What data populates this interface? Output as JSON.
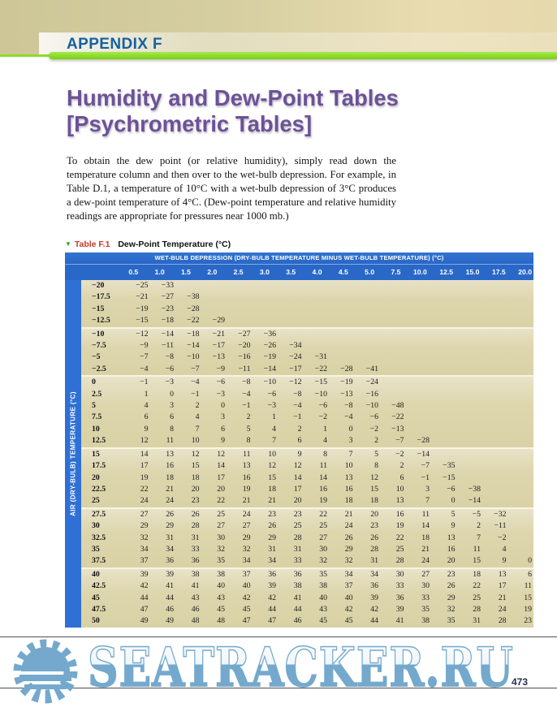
{
  "page": {
    "appendix_label": "APPENDIX F",
    "title_line1": "Humidity and Dew-Point Tables",
    "title_line2": "[Psychrometric Tables]",
    "intro_paragraph": "To obtain the dew point (or relative humidity), simply read down the temperature column and then over to the wet-bulb depression. For example, in Table D.1, a temperature of 10°C with a wet-bulb depression of 3°C produces a dew-point temperature of 4°C. (Dew-point temperature and relative humidity readings are appropriate for pressures near 1000 mb.)",
    "page_number": "473"
  },
  "table": {
    "caption_marker": "▼",
    "caption_label": "Table F.1",
    "caption_title": "Dew-Point Temperature (°C)",
    "header_banner": "WET-BULB DEPRESSION (DRY-BULB TEMPERATURE MINUS WET-BULB TEMPERATURE) (°C)",
    "row_axis_label": "AIR (DRY-BULB) TEMPERATURE (°C)",
    "column_headers": [
      "0.5",
      "1.0",
      "1.5",
      "2.0",
      "2.5",
      "3.0",
      "3.5",
      "4.0",
      "4.5",
      "5.0",
      "7.5",
      "10.0",
      "12.5",
      "15.0",
      "17.5",
      "20.0"
    ],
    "row_groups": [
      4,
      4,
      6,
      5,
      5,
      5
    ],
    "rows": [
      {
        "temp": "−20",
        "values": [
          "−25",
          "−33"
        ]
      },
      {
        "temp": "−17.5",
        "values": [
          "−21",
          "−27",
          "−38"
        ]
      },
      {
        "temp": "−15",
        "values": [
          "−19",
          "−23",
          "−28"
        ]
      },
      {
        "temp": "−12.5",
        "values": [
          "−15",
          "−18",
          "−22",
          "−29"
        ]
      },
      {
        "temp": "−10",
        "values": [
          "−12",
          "−14",
          "−18",
          "−21",
          "−27",
          "−36"
        ]
      },
      {
        "temp": "−7.5",
        "values": [
          "−9",
          "−11",
          "−14",
          "−17",
          "−20",
          "−26",
          "−34"
        ]
      },
      {
        "temp": "−5",
        "values": [
          "−7",
          "−8",
          "−10",
          "−13",
          "−16",
          "−19",
          "−24",
          "−31"
        ]
      },
      {
        "temp": "−2.5",
        "values": [
          "−4",
          "−6",
          "−7",
          "−9",
          "−11",
          "−14",
          "−17",
          "−22",
          "−28",
          "−41"
        ]
      },
      {
        "temp": "0",
        "values": [
          "−1",
          "−3",
          "−4",
          "−6",
          "−8",
          "−10",
          "−12",
          "−15",
          "−19",
          "−24"
        ]
      },
      {
        "temp": "2.5",
        "values": [
          "1",
          "0",
          "−1",
          "−3",
          "−4",
          "−6",
          "−8",
          "−10",
          "−13",
          "−16"
        ]
      },
      {
        "temp": "5",
        "values": [
          "4",
          "3",
          "2",
          "0",
          "−1",
          "−3",
          "−4",
          "−6",
          "−8",
          "−10",
          "−48"
        ]
      },
      {
        "temp": "7.5",
        "values": [
          "6",
          "6",
          "4",
          "3",
          "2",
          "1",
          "−1",
          "−2",
          "−4",
          "−6",
          "−22"
        ]
      },
      {
        "temp": "10",
        "values": [
          "9",
          "8",
          "7",
          "6",
          "5",
          "4",
          "2",
          "1",
          "0",
          "−2",
          "−13"
        ]
      },
      {
        "temp": "12.5",
        "values": [
          "12",
          "11",
          "10",
          "9",
          "8",
          "7",
          "6",
          "4",
          "3",
          "2",
          "−7",
          "−28"
        ]
      },
      {
        "temp": "15",
        "values": [
          "14",
          "13",
          "12",
          "12",
          "11",
          "10",
          "9",
          "8",
          "7",
          "5",
          "−2",
          "−14"
        ]
      },
      {
        "temp": "17.5",
        "values": [
          "17",
          "16",
          "15",
          "14",
          "13",
          "12",
          "12",
          "11",
          "10",
          "8",
          "2",
          "−7",
          "−35"
        ]
      },
      {
        "temp": "20",
        "values": [
          "19",
          "18",
          "18",
          "17",
          "16",
          "15",
          "14",
          "14",
          "13",
          "12",
          "6",
          "−1",
          "−15"
        ]
      },
      {
        "temp": "22.5",
        "values": [
          "22",
          "21",
          "20",
          "20",
          "19",
          "18",
          "17",
          "16",
          "16",
          "15",
          "10",
          "3",
          "−6",
          "−38"
        ]
      },
      {
        "temp": "25",
        "values": [
          "24",
          "24",
          "23",
          "22",
          "21",
          "21",
          "20",
          "19",
          "18",
          "18",
          "13",
          "7",
          "0",
          "−14"
        ]
      },
      {
        "temp": "27.5",
        "values": [
          "27",
          "26",
          "26",
          "25",
          "24",
          "23",
          "23",
          "22",
          "21",
          "20",
          "16",
          "11",
          "5",
          "−5",
          "−32"
        ]
      },
      {
        "temp": "30",
        "values": [
          "29",
          "29",
          "28",
          "27",
          "27",
          "26",
          "25",
          "25",
          "24",
          "23",
          "19",
          "14",
          "9",
          "2",
          "−11"
        ]
      },
      {
        "temp": "32.5",
        "values": [
          "32",
          "31",
          "31",
          "30",
          "29",
          "29",
          "28",
          "27",
          "26",
          "26",
          "22",
          "18",
          "13",
          "7",
          "−2"
        ]
      },
      {
        "temp": "35",
        "values": [
          "34",
          "34",
          "33",
          "32",
          "32",
          "31",
          "31",
          "30",
          "29",
          "28",
          "25",
          "21",
          "16",
          "11",
          "4"
        ]
      },
      {
        "temp": "37.5",
        "values": [
          "37",
          "36",
          "36",
          "35",
          "34",
          "34",
          "33",
          "32",
          "32",
          "31",
          "28",
          "24",
          "20",
          "15",
          "9",
          "0"
        ]
      },
      {
        "temp": "40",
        "values": [
          "39",
          "39",
          "38",
          "38",
          "37",
          "36",
          "36",
          "35",
          "34",
          "34",
          "30",
          "27",
          "23",
          "18",
          "13",
          "6"
        ]
      },
      {
        "temp": "42.5",
        "values": [
          "42",
          "41",
          "41",
          "40",
          "40",
          "39",
          "38",
          "38",
          "37",
          "36",
          "33",
          "30",
          "26",
          "22",
          "17",
          "11"
        ]
      },
      {
        "temp": "45",
        "values": [
          "44",
          "44",
          "43",
          "43",
          "42",
          "42",
          "41",
          "40",
          "40",
          "39",
          "36",
          "33",
          "29",
          "25",
          "21",
          "15"
        ]
      },
      {
        "temp": "47.5",
        "values": [
          "47",
          "46",
          "46",
          "45",
          "45",
          "44",
          "44",
          "43",
          "42",
          "42",
          "39",
          "35",
          "32",
          "28",
          "24",
          "19"
        ]
      },
      {
        "temp": "50",
        "values": [
          "49",
          "49",
          "48",
          "48",
          "47",
          "47",
          "46",
          "45",
          "45",
          "44",
          "41",
          "38",
          "35",
          "31",
          "28",
          "23"
        ]
      }
    ]
  },
  "watermark": {
    "text": "SEATRACKER.RU",
    "logo": "sun-logo",
    "color": "#74a9cd"
  },
  "palette": {
    "header_blue": "#2a68c8",
    "axis_strip_blue": "#2f70d5",
    "body_tan": "#ddd6ad",
    "green_rule": "#8cdb2a",
    "title_purple": "#6c5296",
    "appendix_blue": "#1461a3",
    "caption_red": "#cb3928",
    "caption_marker_green": "#2fa12f",
    "watermark_blue": "#74a9cd"
  }
}
